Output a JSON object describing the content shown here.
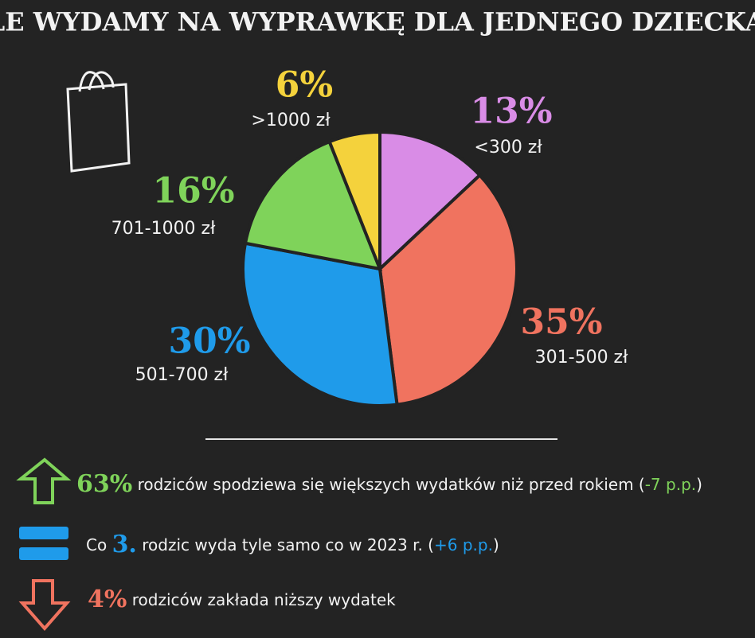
{
  "chart_data": {
    "type": "pie",
    "title": "ILE WYDAMY NA WYPRAWKĘ DLA JEDNEGO DZIECKA?",
    "categories": [
      "<300 zł",
      "301-500 zł",
      "501-700 zł",
      "701-1000 zł",
      ">1000 zł"
    ],
    "values": [
      13,
      35,
      30,
      16,
      6
    ],
    "value_labels": [
      "13%",
      "35%",
      "30%",
      "16%",
      "6%"
    ],
    "colors": [
      "#d98ce6",
      "#f0735f",
      "#1f9bea",
      "#7fd35a",
      "#f4d23c"
    ],
    "annotations": [
      {
        "highlight": "63%",
        "color": "#7fd35a",
        "text": "rodziców spodziewa się większych wydatków niż przed rokiem (",
        "note": "-7 p.p.",
        "close": ")"
      },
      {
        "prefix": "Co",
        "highlight": "3.",
        "color": "#1f9bea",
        "text": "rodzic wyda tyle samo co w 2023 r. (",
        "note": "+6 p.p.",
        "close": ")"
      },
      {
        "highlight": "4%",
        "color": "#f0735f",
        "text": "rodziców zakłada niższy wydatek"
      }
    ]
  }
}
